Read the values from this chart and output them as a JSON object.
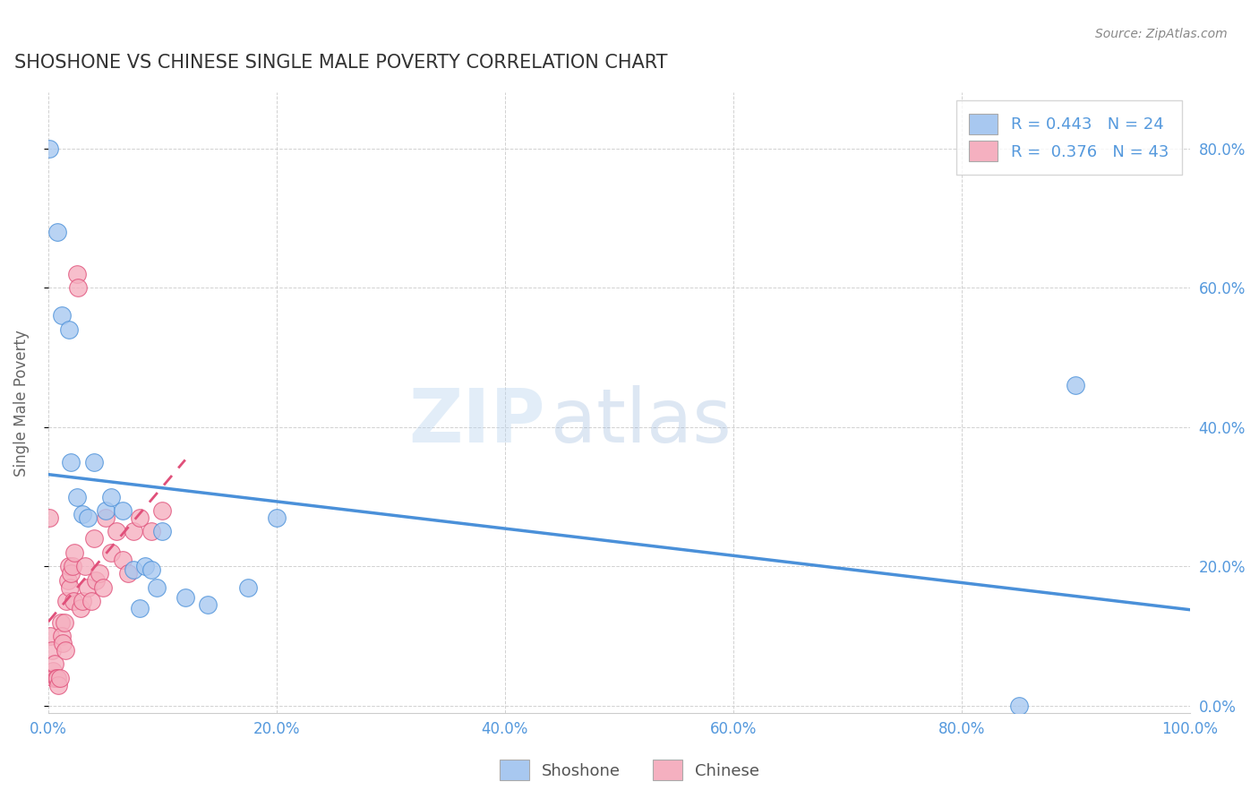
{
  "title": "SHOSHONE VS CHINESE SINGLE MALE POVERTY CORRELATION CHART",
  "source": "Source: ZipAtlas.com",
  "ylabel": "Single Male Poverty",
  "watermark_zip": "ZIP",
  "watermark_atlas": "atlas",
  "shoshone": {
    "R": 0.443,
    "N": 24,
    "color": "#a8c8f0",
    "line_color": "#4a90d9",
    "points_x": [
      0.001,
      0.008,
      0.012,
      0.018,
      0.02,
      0.025,
      0.03,
      0.035,
      0.04,
      0.05,
      0.055,
      0.065,
      0.075,
      0.08,
      0.085,
      0.09,
      0.095,
      0.1,
      0.12,
      0.14,
      0.175,
      0.2,
      0.85,
      0.9
    ],
    "points_y": [
      0.8,
      0.68,
      0.56,
      0.54,
      0.35,
      0.3,
      0.275,
      0.27,
      0.35,
      0.28,
      0.3,
      0.28,
      0.195,
      0.14,
      0.2,
      0.195,
      0.17,
      0.25,
      0.155,
      0.145,
      0.17,
      0.27,
      0.0,
      0.46
    ]
  },
  "chinese": {
    "R": 0.376,
    "N": 43,
    "color": "#f5b0c0",
    "line_color": "#e0507a",
    "points_x": [
      0.001,
      0.002,
      0.003,
      0.004,
      0.005,
      0.006,
      0.007,
      0.008,
      0.009,
      0.01,
      0.011,
      0.012,
      0.013,
      0.014,
      0.015,
      0.016,
      0.017,
      0.018,
      0.019,
      0.02,
      0.021,
      0.022,
      0.023,
      0.025,
      0.026,
      0.028,
      0.03,
      0.032,
      0.035,
      0.038,
      0.04,
      0.042,
      0.045,
      0.048,
      0.05,
      0.055,
      0.06,
      0.065,
      0.07,
      0.075,
      0.08,
      0.09,
      0.1
    ],
    "points_y": [
      0.27,
      0.1,
      0.08,
      0.05,
      0.04,
      0.06,
      0.04,
      0.04,
      0.03,
      0.04,
      0.12,
      0.1,
      0.09,
      0.12,
      0.08,
      0.15,
      0.18,
      0.2,
      0.17,
      0.19,
      0.2,
      0.15,
      0.22,
      0.62,
      0.6,
      0.14,
      0.15,
      0.2,
      0.17,
      0.15,
      0.24,
      0.18,
      0.19,
      0.17,
      0.27,
      0.22,
      0.25,
      0.21,
      0.19,
      0.25,
      0.27,
      0.25,
      0.28
    ]
  },
  "xlim": [
    0.0,
    1.0
  ],
  "ylim": [
    -0.01,
    0.88
  ],
  "xticks": [
    0.0,
    0.2,
    0.4,
    0.6,
    0.8,
    1.0
  ],
  "xtick_labels": [
    "0.0%",
    "20.0%",
    "40.0%",
    "60.0%",
    "80.0%",
    "100.0%"
  ],
  "yticks": [
    0.0,
    0.2,
    0.4,
    0.6,
    0.8
  ],
  "ytick_labels_right": [
    "0.0%",
    "20.0%",
    "40.0%",
    "60.0%",
    "80.0%"
  ],
  "grid_color": "#cccccc",
  "background_color": "#ffffff",
  "title_color": "#333333",
  "source_color": "#888888",
  "tick_color": "#5599dd",
  "ylabel_color": "#666666"
}
